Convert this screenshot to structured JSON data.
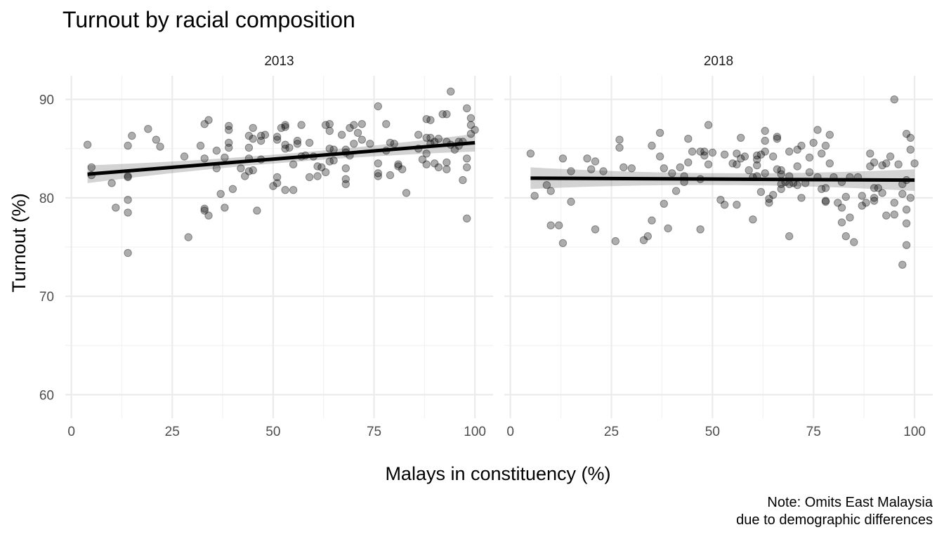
{
  "chart_data": {
    "type": "scatter",
    "title": "Turnout by racial composition",
    "xlabel": "Malays in constituency (%)",
    "ylabel": "Turnout (%)",
    "caption": [
      "Note: Omits East Malaysia",
      "due to demographic differences"
    ],
    "xlim": [
      -1.5,
      104.5
    ],
    "ylim": [
      57.6,
      92.4
    ],
    "x_ticks": [
      0,
      25,
      50,
      75,
      100
    ],
    "y_ticks": [
      60,
      70,
      80,
      90
    ],
    "grid": true,
    "legend": "none",
    "panels": [
      {
        "name": "2013",
        "fit": {
          "x": [
            4,
            100
          ],
          "y": [
            82.4,
            85.6
          ],
          "band_halfwidth": [
            0.9,
            0.45
          ]
        },
        "points": [
          [
            4,
            85.4
          ],
          [
            5,
            83.1
          ],
          [
            5,
            82.3
          ],
          [
            10,
            81.5
          ],
          [
            11,
            79.0
          ],
          [
            14,
            85.3
          ],
          [
            14,
            82.2
          ],
          [
            14,
            82.1
          ],
          [
            14,
            79.8
          ],
          [
            14,
            78.5
          ],
          [
            14,
            74.4
          ],
          [
            15,
            86.3
          ],
          [
            19,
            87.0
          ],
          [
            21,
            85.9
          ],
          [
            22,
            85.2
          ],
          [
            28,
            84.2
          ],
          [
            29,
            76.0
          ],
          [
            32,
            85.3
          ],
          [
            33,
            87.5
          ],
          [
            33,
            84.0
          ],
          [
            33,
            78.9
          ],
          [
            33,
            78.7
          ],
          [
            34,
            87.9
          ],
          [
            34,
            78.2
          ],
          [
            36,
            84.8
          ],
          [
            36,
            83.0
          ],
          [
            37,
            80.4
          ],
          [
            38,
            84.1
          ],
          [
            38,
            79.0
          ],
          [
            39,
            87.3
          ],
          [
            39,
            86.9
          ],
          [
            39,
            85.6
          ],
          [
            39,
            85.1
          ],
          [
            40,
            80.9
          ],
          [
            42,
            83.0
          ],
          [
            43,
            82.2
          ],
          [
            44,
            86.3
          ],
          [
            44,
            85.1
          ],
          [
            44,
            84.0
          ],
          [
            44,
            82.7
          ],
          [
            45,
            87.1
          ],
          [
            45,
            86.0
          ],
          [
            45,
            82.8
          ],
          [
            46,
            78.7
          ],
          [
            47,
            86.3
          ],
          [
            47,
            85.8
          ],
          [
            47,
            83.9
          ],
          [
            48,
            86.4
          ],
          [
            50,
            81.2
          ],
          [
            51,
            86.2
          ],
          [
            51,
            85.9
          ],
          [
            51,
            82.1
          ],
          [
            51,
            81.5
          ],
          [
            52,
            87.1
          ],
          [
            53,
            87.4
          ],
          [
            53,
            87.2
          ],
          [
            53,
            85.4
          ],
          [
            53,
            85.0
          ],
          [
            53,
            80.8
          ],
          [
            54,
            85.1
          ],
          [
            55,
            83.4
          ],
          [
            55,
            80.8
          ],
          [
            56,
            85.8
          ],
          [
            56,
            85.5
          ],
          [
            57,
            87.4
          ],
          [
            57,
            84.2
          ],
          [
            58,
            84.3
          ],
          [
            59,
            85.6
          ],
          [
            59,
            82.1
          ],
          [
            60,
            84.2
          ],
          [
            61,
            83.2
          ],
          [
            61,
            82.2
          ],
          [
            62,
            83.1
          ],
          [
            63,
            87.4
          ],
          [
            63,
            82.6
          ],
          [
            64,
            87.5
          ],
          [
            64,
            86.8
          ],
          [
            64,
            85.0
          ],
          [
            64,
            83.7
          ],
          [
            65,
            84.9
          ],
          [
            65,
            83.8
          ],
          [
            67,
            86.4
          ],
          [
            68,
            84.9
          ],
          [
            68,
            84.6
          ],
          [
            68,
            83.0
          ],
          [
            68,
            81.9
          ],
          [
            68,
            81.4
          ],
          [
            69,
            87.1
          ],
          [
            69,
            84.3
          ],
          [
            70,
            85.5
          ],
          [
            70,
            87.4
          ],
          [
            71,
            86.6
          ],
          [
            72,
            87.5
          ],
          [
            72,
            85.9
          ],
          [
            74,
            85.5
          ],
          [
            76,
            89.3
          ],
          [
            76,
            83.5
          ],
          [
            76,
            82.5
          ],
          [
            76,
            82.2
          ],
          [
            78,
            87.5
          ],
          [
            78,
            84.8
          ],
          [
            79,
            85.6
          ],
          [
            79,
            82.3
          ],
          [
            80,
            85.5
          ],
          [
            81,
            83.4
          ],
          [
            81,
            83.2
          ],
          [
            82,
            82.9
          ],
          [
            83,
            80.5
          ],
          [
            86,
            86.4
          ],
          [
            86,
            85.0
          ],
          [
            87,
            83.9
          ],
          [
            88,
            88.0
          ],
          [
            88,
            86.1
          ],
          [
            88,
            84.5
          ],
          [
            88,
            83.4
          ],
          [
            89,
            87.9
          ],
          [
            89,
            86.1
          ],
          [
            89,
            85.5
          ],
          [
            90,
            85.7
          ],
          [
            90,
            83.5
          ],
          [
            91,
            86.0
          ],
          [
            91,
            83.1
          ],
          [
            92,
            88.5
          ],
          [
            93,
            88.5
          ],
          [
            93,
            85.7
          ],
          [
            93,
            83.6
          ],
          [
            93,
            82.9
          ],
          [
            94,
            90.8
          ],
          [
            94,
            85.4
          ],
          [
            95,
            84.9
          ],
          [
            96,
            85.7
          ],
          [
            96,
            85.3
          ],
          [
            97,
            81.8
          ],
          [
            97,
            85.7
          ],
          [
            98,
            89.1
          ],
          [
            98,
            84.0
          ],
          [
            98,
            83.1
          ],
          [
            98,
            77.9
          ],
          [
            99,
            88.1
          ],
          [
            99,
            87.4
          ],
          [
            99,
            86.5
          ],
          [
            100,
            86.9
          ]
        ]
      },
      {
        "name": "2018",
        "fit": {
          "x": [
            5,
            100
          ],
          "y": [
            82.0,
            81.8
          ],
          "band_halfwidth": [
            1.1,
            0.6
          ]
        },
        "points": [
          [
            5,
            84.5
          ],
          [
            6,
            80.2
          ],
          [
            9,
            81.3
          ],
          [
            10,
            80.7
          ],
          [
            10,
            77.2
          ],
          [
            12,
            77.2
          ],
          [
            13,
            84.0
          ],
          [
            13,
            75.4
          ],
          [
            15,
            82.7
          ],
          [
            15,
            79.6
          ],
          [
            19,
            84.0
          ],
          [
            20,
            82.9
          ],
          [
            21,
            83.7
          ],
          [
            21,
            76.8
          ],
          [
            23,
            82.7
          ],
          [
            26,
            75.6
          ],
          [
            27,
            85.9
          ],
          [
            27,
            85.1
          ],
          [
            28,
            83.1
          ],
          [
            30,
            83.0
          ],
          [
            33,
            75.7
          ],
          [
            34,
            76.1
          ],
          [
            35,
            85.3
          ],
          [
            35,
            77.7
          ],
          [
            37,
            86.6
          ],
          [
            37,
            84.2
          ],
          [
            38,
            83.0
          ],
          [
            38,
            79.4
          ],
          [
            39,
            76.9
          ],
          [
            40,
            82.5
          ],
          [
            41,
            80.7
          ],
          [
            42,
            83.1
          ],
          [
            43,
            82.2
          ],
          [
            43,
            81.6
          ],
          [
            44,
            86.0
          ],
          [
            44,
            83.6
          ],
          [
            45,
            84.7
          ],
          [
            47,
            84.7
          ],
          [
            47,
            81.9
          ],
          [
            47,
            76.8
          ],
          [
            48,
            84.7
          ],
          [
            48,
            84.3
          ],
          [
            49,
            87.4
          ],
          [
            49,
            83.4
          ],
          [
            50,
            84.6
          ],
          [
            52,
            79.8
          ],
          [
            53,
            79.3
          ],
          [
            53,
            84.4
          ],
          [
            55,
            83.5
          ],
          [
            56,
            84.5
          ],
          [
            56,
            83.4
          ],
          [
            56,
            79.3
          ],
          [
            57,
            86.1
          ],
          [
            57,
            84.0
          ],
          [
            58,
            84.2
          ],
          [
            59,
            82.8
          ],
          [
            60,
            82.1
          ],
          [
            60,
            77.8
          ],
          [
            61,
            84.3
          ],
          [
            61,
            83.9
          ],
          [
            61,
            83.3
          ],
          [
            61,
            82.2
          ],
          [
            62,
            80.6
          ],
          [
            62,
            84.4
          ],
          [
            63,
            86.8
          ],
          [
            63,
            85.8
          ],
          [
            63,
            84.7
          ],
          [
            63,
            82.5
          ],
          [
            64,
            79.9
          ],
          [
            64,
            79.5
          ],
          [
            65,
            80.3
          ],
          [
            65,
            84.2
          ],
          [
            66,
            86.2
          ],
          [
            66,
            86.0
          ],
          [
            66,
            82.9
          ],
          [
            67,
            82.8
          ],
          [
            67,
            82.4
          ],
          [
            67,
            81.4
          ],
          [
            67,
            80.9
          ],
          [
            68,
            81.6
          ],
          [
            69,
            84.7
          ],
          [
            69,
            82.2
          ],
          [
            69,
            81.4
          ],
          [
            69,
            76.1
          ],
          [
            70,
            81.5
          ],
          [
            71,
            84.9
          ],
          [
            71,
            83.2
          ],
          [
            71,
            81.3
          ],
          [
            72,
            85.3
          ],
          [
            72,
            80.0
          ],
          [
            73,
            81.5
          ],
          [
            74,
            84.1
          ],
          [
            74,
            82.6
          ],
          [
            75,
            85.6
          ],
          [
            76,
            86.9
          ],
          [
            76,
            82.1
          ],
          [
            77,
            84.5
          ],
          [
            77,
            80.9
          ],
          [
            78,
            85.3
          ],
          [
            78,
            81.0
          ],
          [
            78,
            79.6
          ],
          [
            78,
            79.7
          ],
          [
            79,
            86.4
          ],
          [
            79,
            83.5
          ],
          [
            80,
            82.1
          ],
          [
            81,
            79.5
          ],
          [
            82,
            81.6
          ],
          [
            82,
            79.0
          ],
          [
            82,
            77.5
          ],
          [
            83,
            80.1
          ],
          [
            83,
            76.1
          ],
          [
            84,
            82.1
          ],
          [
            84,
            78.0
          ],
          [
            85,
            75.5
          ],
          [
            86,
            82.1
          ],
          [
            87,
            80.2
          ],
          [
            87,
            79.2
          ],
          [
            88,
            79.5
          ],
          [
            89,
            84.5
          ],
          [
            89,
            83.2
          ],
          [
            90,
            83.6
          ],
          [
            90,
            81.0
          ],
          [
            90,
            80.0
          ],
          [
            90,
            79.7
          ],
          [
            91,
            81.0
          ],
          [
            92,
            80.5
          ],
          [
            92,
            83.3
          ],
          [
            93,
            83.5
          ],
          [
            93,
            78.2
          ],
          [
            94,
            84.2
          ],
          [
            95,
            90.0
          ],
          [
            95,
            79.5
          ],
          [
            95,
            78.3
          ],
          [
            96,
            83.4
          ],
          [
            97,
            81.4
          ],
          [
            97,
            80.4
          ],
          [
            97,
            73.2
          ],
          [
            98,
            86.5
          ],
          [
            98,
            81.8
          ],
          [
            98,
            78.8
          ],
          [
            98,
            77.4
          ],
          [
            98,
            75.2
          ],
          [
            99,
            86.1
          ],
          [
            99,
            84.9
          ],
          [
            99,
            80.0
          ],
          [
            100,
            83.5
          ]
        ]
      }
    ]
  }
}
